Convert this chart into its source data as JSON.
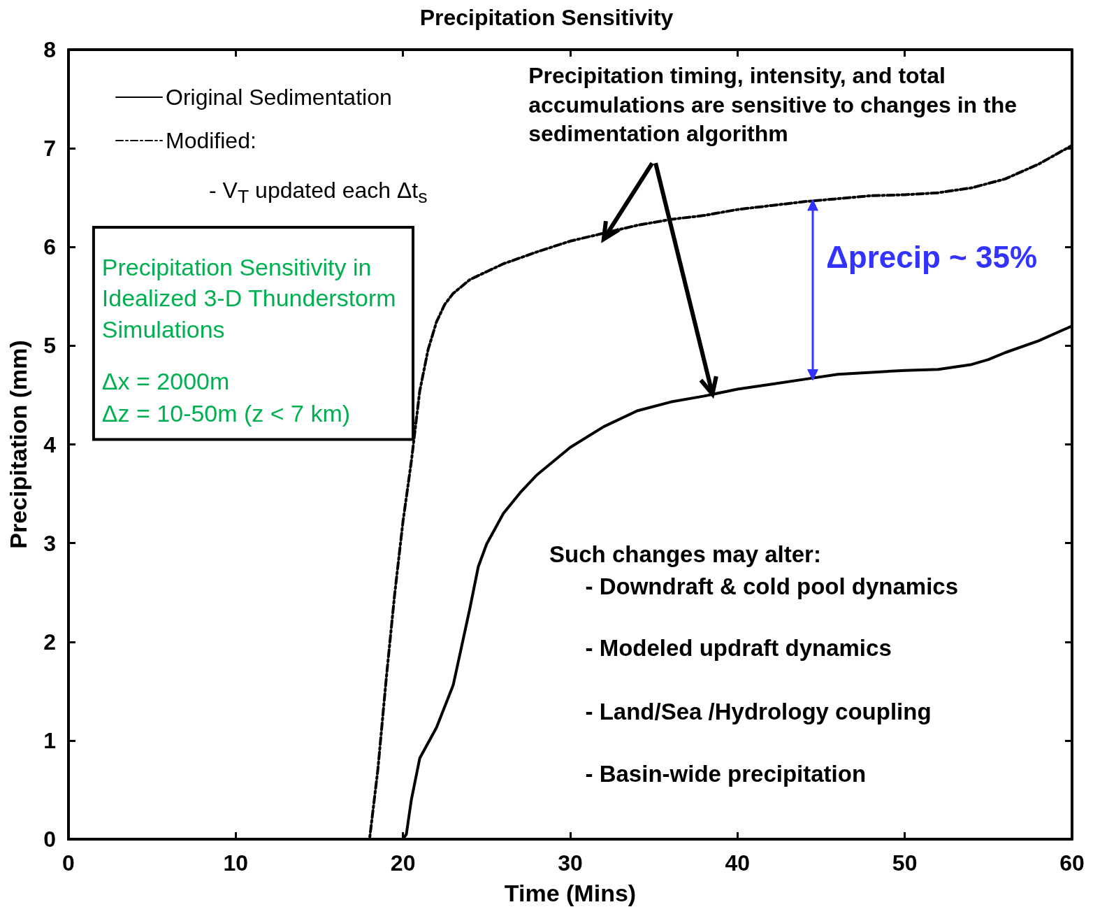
{
  "chart_data": {
    "type": "line",
    "title": "Precipitation Sensitivity",
    "xlabel": "Time (Mins)",
    "ylabel": "Precipitation (mm)",
    "xlim": [
      0,
      60
    ],
    "xticks": [
      0,
      10,
      20,
      30,
      40,
      50,
      60
    ],
    "ylim": [
      0,
      8
    ],
    "yticks": [
      0,
      1,
      2,
      3,
      4,
      5,
      6,
      7,
      8
    ],
    "grid": false,
    "legend": "top left",
    "marker": "none",
    "series": [
      {
        "name": "Original Sedimentation",
        "color": "#000000",
        "line_style": "solid",
        "x": [
          0,
          5,
          10,
          15,
          20,
          20.2,
          20.5,
          21,
          22,
          23,
          24,
          24.5,
          25,
          26,
          27,
          28,
          30,
          32,
          34,
          36,
          38,
          40,
          42,
          44,
          46,
          48,
          50,
          52,
          54,
          55,
          56,
          58,
          60
        ],
        "values": [
          0,
          0,
          0,
          0,
          0,
          0.05,
          0.4,
          0.82,
          1.13,
          1.56,
          2.34,
          2.76,
          2.99,
          3.3,
          3.51,
          3.69,
          3.97,
          4.18,
          4.34,
          4.43,
          4.49,
          4.56,
          4.61,
          4.66,
          4.71,
          4.73,
          4.75,
          4.76,
          4.81,
          4.86,
          4.93,
          5.05,
          5.2
        ]
      },
      {
        "name": "Modified:",
        "color": "#000000",
        "line_style": "dashed",
        "x": [
          0,
          5,
          10,
          15,
          18,
          18.5,
          19,
          19.5,
          20,
          20.5,
          21,
          21.5,
          22,
          22.5,
          23,
          24,
          25,
          26,
          28,
          30,
          32,
          34,
          36,
          38,
          40,
          42,
          44,
          46,
          48,
          50,
          52,
          54,
          56,
          58,
          60
        ],
        "values": [
          0,
          0,
          0,
          0,
          0,
          0.71,
          1.63,
          2.48,
          3.22,
          3.83,
          4.54,
          4.96,
          5.24,
          5.42,
          5.53,
          5.67,
          5.75,
          5.83,
          5.95,
          6.06,
          6.14,
          6.22,
          6.28,
          6.32,
          6.38,
          6.42,
          6.46,
          6.49,
          6.52,
          6.53,
          6.55,
          6.6,
          6.69,
          6.84,
          7.03
        ]
      }
    ],
    "annotations": [
      "- V$_{T}$ updated each Δt$_{s}$",
      {
        "text": "Precipitation timing, intensity, and total accumulations are sensitive  to changes in the sedimentation  algorithm",
        "x": 38.5,
        "y": 4.51
      },
      "Precipitation Sensitivity in Idealized 3-D Thunderstorm Simulations",
      "Δx = 2000m",
      "Δz = 10-50m (z < 7 km)",
      "Such changes may alter:",
      "- Downdraft & cold pool dynamics",
      "- Modeled updraft dynamics",
      "- Land/Sea /Hydrology coupling",
      "- Basin-wide precipitation",
      {
        "text": "Δprecip ~ 35%",
        "x": 44.5,
        "y": 6.47
      }
    ]
  }
}
